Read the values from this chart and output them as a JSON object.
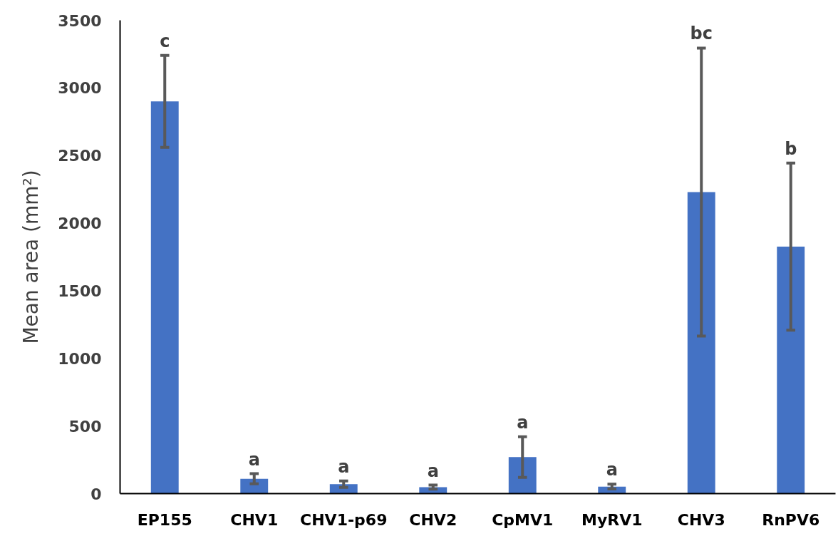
{
  "chart_data": {
    "type": "bar",
    "ylabel": "Mean area (mm²)",
    "categories": [
      "EP155",
      "CHV1",
      "CHV1-p69",
      "CHV2",
      "CpMV1",
      "MyRV1",
      "CHV3",
      "RnPV6"
    ],
    "values": [
      2900,
      110,
      70,
      48,
      270,
      52,
      2230,
      1827
    ],
    "errors": [
      340,
      37,
      24,
      15,
      150,
      18,
      1065,
      618
    ],
    "color": "#4472c4",
    "ylim": [
      0,
      3500
    ],
    "yticks": [
      0,
      500,
      1000,
      1500,
      2000,
      2500,
      3000,
      3500
    ],
    "grid": false,
    "annotations": [
      {
        "text": "c",
        "x": "EP155",
        "y": 3240
      },
      {
        "text": "a",
        "x": "CHV1",
        "y": 147
      },
      {
        "text": "a",
        "x": "CHV1-p69",
        "y": 94
      },
      {
        "text": "a",
        "x": "CHV2",
        "y": 63
      },
      {
        "text": "a",
        "x": "CpMV1",
        "y": 420
      },
      {
        "text": "a",
        "x": "MyRV1",
        "y": 70
      },
      {
        "text": "bc",
        "x": "CHV3",
        "y": 3295
      },
      {
        "text": "b",
        "x": "RnPV6",
        "y": 2445
      }
    ]
  }
}
